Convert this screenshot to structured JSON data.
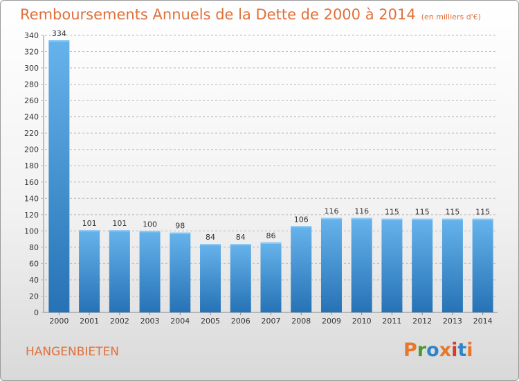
{
  "header": {
    "title": "Remboursements Annuels de la Dette de 2000 à 2014",
    "unit": "(en milliers d'€)"
  },
  "footer": {
    "commune": "HANGENBIETEN",
    "logo_text": "Proxiti",
    "logo_colors": [
      "#e8762c",
      "#4a9a2b",
      "#2e84c6",
      "#e8762c",
      "#d63a2a",
      "#2e84c6",
      "#e8762c"
    ]
  },
  "colors": {
    "bar_top": "#66b3ec",
    "bar_bottom": "#2672b5",
    "bar_highlight": "#8ccaf5",
    "grid": "#b8b8b8",
    "text_accent": "#e0703a"
  },
  "chart_data": {
    "type": "bar",
    "title": "Remboursements Annuels de la Dette de 2000 à 2014",
    "xlabel": "",
    "ylabel": "",
    "categories": [
      "2000",
      "2001",
      "2002",
      "2003",
      "2004",
      "2005",
      "2006",
      "2007",
      "2008",
      "2009",
      "2010",
      "2011",
      "2012",
      "2013",
      "2014"
    ],
    "values": [
      334,
      101,
      101,
      100,
      98,
      84,
      84,
      86,
      106,
      116,
      116,
      115,
      115,
      115,
      115
    ],
    "ylim": [
      0,
      340
    ],
    "yticks": [
      0,
      20,
      40,
      60,
      80,
      100,
      120,
      140,
      160,
      180,
      200,
      220,
      240,
      260,
      280,
      300,
      320,
      340
    ],
    "grid": true
  }
}
